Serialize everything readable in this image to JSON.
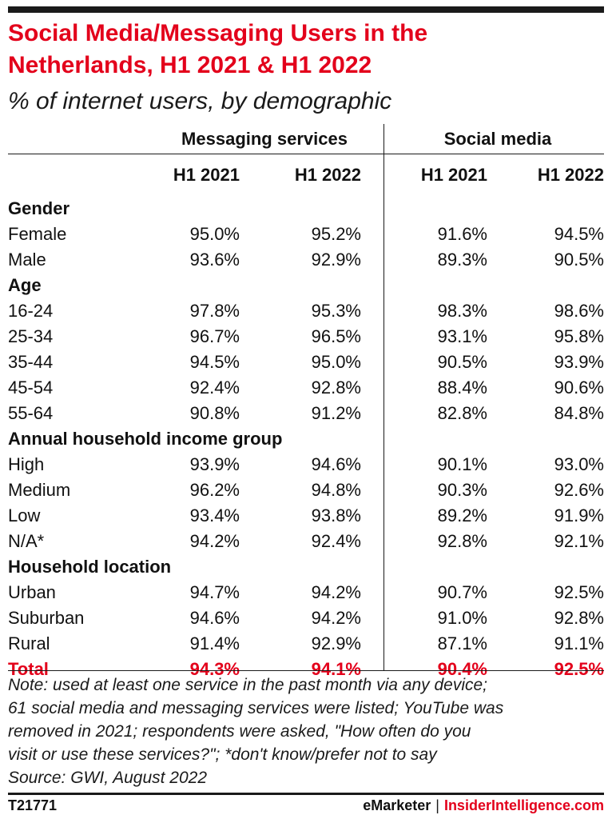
{
  "chart_data": {
    "type": "table",
    "title_lines": [
      "Social Media/Messaging Users in the",
      "Netherlands, H1 2021 & H1 2022"
    ],
    "subtitle": "% of internet users, by demographic",
    "column_groups": [
      "Messaging services",
      "Social media"
    ],
    "columns": [
      "H1 2021",
      "H1 2022",
      "H1 2021",
      "H1 2022"
    ],
    "groups": [
      {
        "label": "Gender",
        "rows": [
          {
            "label": "Female",
            "values": [
              "95.0%",
              "95.2%",
              "91.6%",
              "94.5%"
            ]
          },
          {
            "label": "Male",
            "values": [
              "93.6%",
              "92.9%",
              "89.3%",
              "90.5%"
            ]
          }
        ]
      },
      {
        "label": "Age",
        "rows": [
          {
            "label": "16-24",
            "values": [
              "97.8%",
              "95.3%",
              "98.3%",
              "98.6%"
            ]
          },
          {
            "label": "25-34",
            "values": [
              "96.7%",
              "96.5%",
              "93.1%",
              "95.8%"
            ]
          },
          {
            "label": "35-44",
            "values": [
              "94.5%",
              "95.0%",
              "90.5%",
              "93.9%"
            ]
          },
          {
            "label": "45-54",
            "values": [
              "92.4%",
              "92.8%",
              "88.4%",
              "90.6%"
            ]
          },
          {
            "label": "55-64",
            "values": [
              "90.8%",
              "91.2%",
              "82.8%",
              "84.8%"
            ]
          }
        ]
      },
      {
        "label": "Annual household income group",
        "rows": [
          {
            "label": "High",
            "values": [
              "93.9%",
              "94.6%",
              "90.1%",
              "93.0%"
            ]
          },
          {
            "label": "Medium",
            "values": [
              "96.2%",
              "94.8%",
              "90.3%",
              "92.6%"
            ]
          },
          {
            "label": "Low",
            "values": [
              "93.4%",
              "93.8%",
              "89.2%",
              "91.9%"
            ]
          },
          {
            "label": "N/A*",
            "values": [
              "94.2%",
              "92.4%",
              "92.8%",
              "92.1%"
            ]
          }
        ]
      },
      {
        "label": "Household location",
        "rows": [
          {
            "label": "Urban",
            "values": [
              "94.7%",
              "94.2%",
              "90.7%",
              "92.5%"
            ]
          },
          {
            "label": "Suburban",
            "values": [
              "94.6%",
              "94.2%",
              "91.0%",
              "92.8%"
            ]
          },
          {
            "label": "Rural",
            "values": [
              "91.4%",
              "92.9%",
              "87.1%",
              "91.1%"
            ]
          }
        ]
      }
    ],
    "total": {
      "label": "Total",
      "values": [
        "94.3%",
        "94.1%",
        "90.4%",
        "92.5%"
      ]
    }
  },
  "note_lines": [
    "Note: used at least one service in the past month via any device;",
    "61 social media and messaging services were listed; YouTube was",
    "removed in 2021; respondents were asked, \"How often do you",
    "visit or use these services?\"; *don't know/prefer not to say",
    "Source: GWI, August 2022"
  ],
  "footer": {
    "figure_id": "T21771",
    "brand_left": "eMarketer",
    "separator": "|",
    "brand_right": "InsiderIntelligence.com"
  },
  "colors": {
    "accent": "#e3001b",
    "text": "#111111",
    "rule": "#1a1a1a"
  }
}
